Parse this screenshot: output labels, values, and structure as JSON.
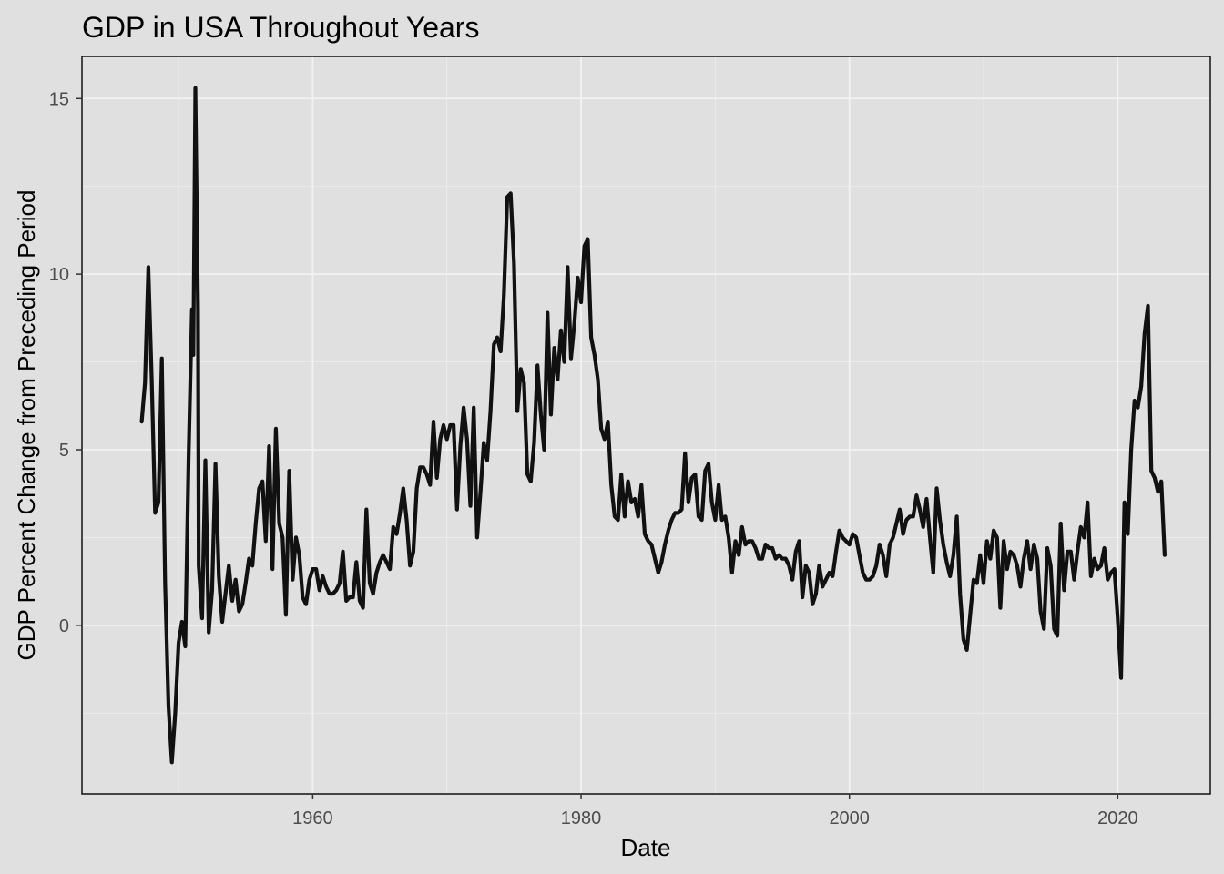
{
  "chart_data": {
    "type": "line",
    "title": "GDP in USA Throughout Years",
    "xlabel": "Date",
    "ylabel": "GDP Percent Change from Preceding Period",
    "x_ticks": [
      "1960",
      "1980",
      "2000",
      "2020"
    ],
    "y_ticks": [
      "0",
      "5",
      "10",
      "15"
    ],
    "xlim": [
      1942.8,
      2026.9
    ],
    "ylim": [
      -4.8,
      16.2
    ],
    "grid": true,
    "legend": "none",
    "colors": {
      "panel": "#e0e0e0",
      "grid": "#f2f2f2",
      "line": "#111111",
      "tick_text": "#4d4d4d"
    },
    "series": [
      {
        "points": [
          [
            1947.25,
            5.8
          ],
          [
            1947.5,
            6.9
          ],
          [
            1947.75,
            10.2
          ],
          [
            1948.0,
            7.0
          ],
          [
            1948.25,
            3.2
          ],
          [
            1948.5,
            3.5
          ],
          [
            1948.75,
            7.6
          ],
          [
            1949.0,
            1.2
          ],
          [
            1949.25,
            -2.3
          ],
          [
            1949.5,
            -3.9
          ],
          [
            1949.75,
            -2.5
          ],
          [
            1950.0,
            -0.5
          ],
          [
            1950.25,
            0.1
          ],
          [
            1950.5,
            -0.6
          ],
          [
            1950.75,
            4.8
          ],
          [
            1951.0,
            9.0
          ],
          [
            1951.1,
            7.7
          ],
          [
            1951.25,
            15.3
          ],
          [
            1951.45,
            9.0
          ],
          [
            1951.5,
            1.7
          ],
          [
            1951.75,
            0.2
          ],
          [
            1952.0,
            4.7
          ],
          [
            1952.25,
            -0.2
          ],
          [
            1952.5,
            1.0
          ],
          [
            1952.75,
            4.6
          ],
          [
            1953.0,
            1.4
          ],
          [
            1953.25,
            0.1
          ],
          [
            1953.5,
            0.9
          ],
          [
            1953.75,
            1.7
          ],
          [
            1954.0,
            0.7
          ],
          [
            1954.25,
            1.3
          ],
          [
            1954.5,
            0.4
          ],
          [
            1954.75,
            0.6
          ],
          [
            1955.0,
            1.2
          ],
          [
            1955.25,
            1.9
          ],
          [
            1955.5,
            1.7
          ],
          [
            1955.75,
            2.9
          ],
          [
            1956.0,
            3.9
          ],
          [
            1956.25,
            4.1
          ],
          [
            1956.5,
            2.4
          ],
          [
            1956.75,
            5.1
          ],
          [
            1957.0,
            1.6
          ],
          [
            1957.25,
            5.6
          ],
          [
            1957.5,
            2.9
          ],
          [
            1957.75,
            2.5
          ],
          [
            1958.0,
            0.3
          ],
          [
            1958.25,
            4.4
          ],
          [
            1958.5,
            1.3
          ],
          [
            1958.75,
            2.5
          ],
          [
            1959.0,
            2.0
          ],
          [
            1959.25,
            0.8
          ],
          [
            1959.5,
            0.6
          ],
          [
            1959.75,
            1.3
          ],
          [
            1960.0,
            1.6
          ],
          [
            1960.25,
            1.6
          ],
          [
            1960.5,
            1.0
          ],
          [
            1960.75,
            1.4
          ],
          [
            1961.0,
            1.1
          ],
          [
            1961.25,
            0.9
          ],
          [
            1961.5,
            0.9
          ],
          [
            1961.75,
            1.0
          ],
          [
            1962.0,
            1.2
          ],
          [
            1962.25,
            2.1
          ],
          [
            1962.5,
            0.7
          ],
          [
            1962.75,
            0.8
          ],
          [
            1963.0,
            0.8
          ],
          [
            1963.25,
            1.8
          ],
          [
            1963.5,
            0.7
          ],
          [
            1963.75,
            0.5
          ],
          [
            1964.0,
            3.3
          ],
          [
            1964.25,
            1.2
          ],
          [
            1964.5,
            0.9
          ],
          [
            1964.75,
            1.5
          ],
          [
            1965.0,
            1.8
          ],
          [
            1965.25,
            2.0
          ],
          [
            1965.5,
            1.8
          ],
          [
            1965.75,
            1.6
          ],
          [
            1966.0,
            2.8
          ],
          [
            1966.25,
            2.6
          ],
          [
            1966.5,
            3.2
          ],
          [
            1966.75,
            3.9
          ],
          [
            1967.0,
            3.0
          ],
          [
            1967.25,
            1.7
          ],
          [
            1967.5,
            2.1
          ],
          [
            1967.75,
            3.9
          ],
          [
            1968.0,
            4.5
          ],
          [
            1968.25,
            4.5
          ],
          [
            1968.5,
            4.3
          ],
          [
            1968.75,
            4.0
          ],
          [
            1969.0,
            5.8
          ],
          [
            1969.25,
            4.2
          ],
          [
            1969.5,
            5.3
          ],
          [
            1969.75,
            5.7
          ],
          [
            1970.0,
            5.3
          ],
          [
            1970.25,
            5.7
          ],
          [
            1970.5,
            5.7
          ],
          [
            1970.75,
            3.3
          ],
          [
            1971.0,
            5.1
          ],
          [
            1971.25,
            6.2
          ],
          [
            1971.5,
            5.3
          ],
          [
            1971.75,
            3.4
          ],
          [
            1972.0,
            6.2
          ],
          [
            1972.25,
            2.5
          ],
          [
            1972.5,
            3.8
          ],
          [
            1972.75,
            5.2
          ],
          [
            1973.0,
            4.7
          ],
          [
            1973.25,
            6.1
          ],
          [
            1973.5,
            8.0
          ],
          [
            1973.75,
            8.2
          ],
          [
            1974.0,
            7.8
          ],
          [
            1974.25,
            9.4
          ],
          [
            1974.5,
            12.2
          ],
          [
            1974.75,
            12.3
          ],
          [
            1975.0,
            10.3
          ],
          [
            1975.25,
            6.1
          ],
          [
            1975.5,
            7.3
          ],
          [
            1975.75,
            6.9
          ],
          [
            1976.0,
            4.3
          ],
          [
            1976.25,
            4.1
          ],
          [
            1976.5,
            5.2
          ],
          [
            1976.75,
            7.4
          ],
          [
            1977.0,
            6.0
          ],
          [
            1977.25,
            5.0
          ],
          [
            1977.5,
            8.9
          ],
          [
            1977.75,
            6.0
          ],
          [
            1978.0,
            7.9
          ],
          [
            1978.25,
            7.0
          ],
          [
            1978.5,
            8.4
          ],
          [
            1978.75,
            7.5
          ],
          [
            1979.0,
            10.2
          ],
          [
            1979.25,
            7.6
          ],
          [
            1979.5,
            8.6
          ],
          [
            1979.75,
            9.9
          ],
          [
            1980.0,
            9.2
          ],
          [
            1980.25,
            10.8
          ],
          [
            1980.5,
            11.0
          ],
          [
            1980.75,
            8.2
          ],
          [
            1981.0,
            7.7
          ],
          [
            1981.25,
            7.0
          ],
          [
            1981.5,
            5.6
          ],
          [
            1981.75,
            5.3
          ],
          [
            1982.0,
            5.8
          ],
          [
            1982.25,
            4.0
          ],
          [
            1982.5,
            3.1
          ],
          [
            1982.75,
            3.0
          ],
          [
            1983.0,
            4.3
          ],
          [
            1983.25,
            3.1
          ],
          [
            1983.5,
            4.1
          ],
          [
            1983.75,
            3.5
          ],
          [
            1984.0,
            3.6
          ],
          [
            1984.25,
            3.1
          ],
          [
            1984.5,
            4.0
          ],
          [
            1984.75,
            2.6
          ],
          [
            1985.0,
            2.4
          ],
          [
            1985.25,
            2.3
          ],
          [
            1985.5,
            1.9
          ],
          [
            1985.75,
            1.5
          ],
          [
            1986.0,
            1.8
          ],
          [
            1986.25,
            2.3
          ],
          [
            1986.5,
            2.7
          ],
          [
            1986.75,
            3.0
          ],
          [
            1987.0,
            3.2
          ],
          [
            1987.25,
            3.2
          ],
          [
            1987.5,
            3.3
          ],
          [
            1987.75,
            4.9
          ],
          [
            1988.0,
            3.5
          ],
          [
            1988.25,
            4.2
          ],
          [
            1988.5,
            4.3
          ],
          [
            1988.75,
            3.1
          ],
          [
            1989.0,
            3.0
          ],
          [
            1989.25,
            4.4
          ],
          [
            1989.5,
            4.6
          ],
          [
            1989.75,
            3.5
          ],
          [
            1990.0,
            3.0
          ],
          [
            1990.25,
            4.0
          ],
          [
            1990.5,
            3.0
          ],
          [
            1990.75,
            3.1
          ],
          [
            1991.0,
            2.5
          ],
          [
            1991.25,
            1.5
          ],
          [
            1991.5,
            2.4
          ],
          [
            1991.75,
            2.0
          ],
          [
            1992.0,
            2.8
          ],
          [
            1992.25,
            2.3
          ],
          [
            1992.5,
            2.4
          ],
          [
            1992.75,
            2.4
          ],
          [
            1993.0,
            2.2
          ],
          [
            1993.25,
            1.9
          ],
          [
            1993.5,
            1.9
          ],
          [
            1993.75,
            2.3
          ],
          [
            1994.0,
            2.2
          ],
          [
            1994.25,
            2.2
          ],
          [
            1994.5,
            1.9
          ],
          [
            1994.75,
            2.0
          ],
          [
            1995.0,
            1.9
          ],
          [
            1995.25,
            1.9
          ],
          [
            1995.5,
            1.7
          ],
          [
            1995.75,
            1.3
          ],
          [
            1996.0,
            2.1
          ],
          [
            1996.25,
            2.4
          ],
          [
            1996.5,
            0.8
          ],
          [
            1996.75,
            1.7
          ],
          [
            1997.0,
            1.5
          ],
          [
            1997.25,
            0.6
          ],
          [
            1997.5,
            0.9
          ],
          [
            1997.75,
            1.7
          ],
          [
            1998.0,
            1.1
          ],
          [
            1998.25,
            1.3
          ],
          [
            1998.5,
            1.5
          ],
          [
            1998.75,
            1.4
          ],
          [
            1999.0,
            2.1
          ],
          [
            1999.25,
            2.7
          ],
          [
            1999.5,
            2.5
          ],
          [
            1999.75,
            2.4
          ],
          [
            2000.0,
            2.3
          ],
          [
            2000.25,
            2.6
          ],
          [
            2000.5,
            2.5
          ],
          [
            2000.75,
            2.0
          ],
          [
            2001.0,
            1.5
          ],
          [
            2001.25,
            1.3
          ],
          [
            2001.5,
            1.3
          ],
          [
            2001.75,
            1.4
          ],
          [
            2002.0,
            1.7
          ],
          [
            2002.25,
            2.3
          ],
          [
            2002.5,
            2.0
          ],
          [
            2002.75,
            1.4
          ],
          [
            2003.0,
            2.3
          ],
          [
            2003.25,
            2.5
          ],
          [
            2003.5,
            2.9
          ],
          [
            2003.75,
            3.3
          ],
          [
            2004.0,
            2.6
          ],
          [
            2004.25,
            3.0
          ],
          [
            2004.5,
            3.1
          ],
          [
            2004.75,
            3.1
          ],
          [
            2005.0,
            3.7
          ],
          [
            2005.25,
            3.3
          ],
          [
            2005.5,
            2.8
          ],
          [
            2005.75,
            3.6
          ],
          [
            2006.0,
            2.5
          ],
          [
            2006.25,
            1.5
          ],
          [
            2006.5,
            3.9
          ],
          [
            2006.75,
            3.0
          ],
          [
            2007.0,
            2.3
          ],
          [
            2007.25,
            1.8
          ],
          [
            2007.5,
            1.4
          ],
          [
            2007.75,
            2.0
          ],
          [
            2008.0,
            3.1
          ],
          [
            2008.25,
            0.9
          ],
          [
            2008.5,
            -0.4
          ],
          [
            2008.75,
            -0.7
          ],
          [
            2009.0,
            0.3
          ],
          [
            2009.25,
            1.3
          ],
          [
            2009.5,
            1.2
          ],
          [
            2009.75,
            2.0
          ],
          [
            2010.0,
            1.2
          ],
          [
            2010.25,
            2.4
          ],
          [
            2010.5,
            1.9
          ],
          [
            2010.75,
            2.7
          ],
          [
            2011.0,
            2.5
          ],
          [
            2011.25,
            0.5
          ],
          [
            2011.5,
            2.4
          ],
          [
            2011.75,
            1.6
          ],
          [
            2012.0,
            2.1
          ],
          [
            2012.25,
            2.0
          ],
          [
            2012.5,
            1.7
          ],
          [
            2012.75,
            1.1
          ],
          [
            2013.0,
            1.9
          ],
          [
            2013.25,
            2.4
          ],
          [
            2013.5,
            1.6
          ],
          [
            2013.75,
            2.3
          ],
          [
            2014.0,
            1.9
          ],
          [
            2014.25,
            0.4
          ],
          [
            2014.5,
            -0.1
          ],
          [
            2014.75,
            2.2
          ],
          [
            2015.0,
            1.7
          ],
          [
            2015.25,
            -0.1
          ],
          [
            2015.5,
            -0.3
          ],
          [
            2015.75,
            2.9
          ],
          [
            2016.0,
            1.0
          ],
          [
            2016.25,
            2.1
          ],
          [
            2016.5,
            2.1
          ],
          [
            2016.75,
            1.3
          ],
          [
            2017.0,
            2.1
          ],
          [
            2017.25,
            2.8
          ],
          [
            2017.5,
            2.5
          ],
          [
            2017.75,
            3.5
          ],
          [
            2018.0,
            1.4
          ],
          [
            2018.25,
            1.9
          ],
          [
            2018.5,
            1.6
          ],
          [
            2018.75,
            1.7
          ],
          [
            2019.0,
            2.2
          ],
          [
            2019.25,
            1.3
          ],
          [
            2019.5,
            1.5
          ],
          [
            2019.75,
            1.6
          ],
          [
            2020.0,
            0.2
          ],
          [
            2020.25,
            -1.5
          ],
          [
            2020.5,
            3.5
          ],
          [
            2020.75,
            2.6
          ],
          [
            2021.0,
            5.0
          ],
          [
            2021.25,
            6.4
          ],
          [
            2021.5,
            6.2
          ],
          [
            2021.75,
            6.8
          ],
          [
            2022.0,
            8.3
          ],
          [
            2022.25,
            9.1
          ],
          [
            2022.5,
            4.4
          ],
          [
            2022.75,
            4.2
          ],
          [
            2023.0,
            3.8
          ],
          [
            2023.25,
            4.1
          ],
          [
            2023.5,
            2.0
          ]
        ]
      }
    ]
  }
}
